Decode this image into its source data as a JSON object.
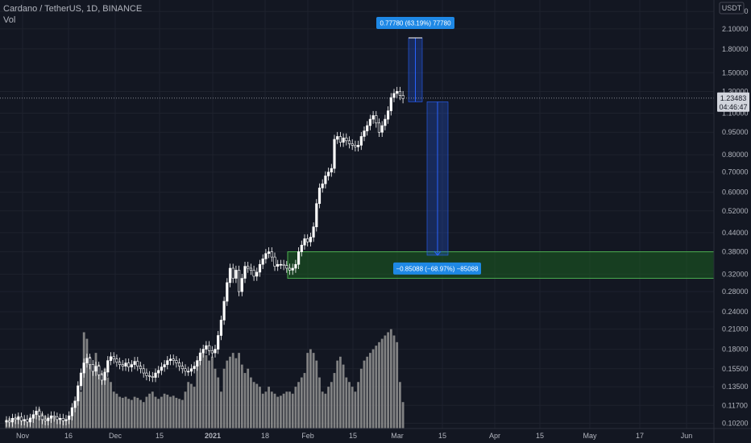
{
  "chart_data": {
    "type": "candlestick",
    "symbol_line": "Cardano / TetherUS, 1D, BINANCE",
    "volume_label": "Vol",
    "currency_badge": "USDT",
    "yscale": "log",
    "ylim": [
      0.098,
      2.62
    ],
    "y_ticks": [
      "2.40000",
      "2.10000",
      "1.80000",
      "1.50000",
      "1.30000",
      "1.10000",
      "0.95000",
      "0.80000",
      "0.70000",
      "0.60000",
      "0.52000",
      "0.44000",
      "0.38000",
      "0.32000",
      "0.28000",
      "0.24000",
      "0.21000",
      "0.18000",
      "0.15500",
      "0.13500",
      "0.11700",
      "0.10200"
    ],
    "x_ticks": [
      {
        "label": "Nov",
        "bold": false
      },
      {
        "label": "16",
        "bold": false
      },
      {
        "label": "Dec",
        "bold": false
      },
      {
        "label": "15",
        "bold": false
      },
      {
        "label": "2021",
        "bold": true
      },
      {
        "label": "18",
        "bold": false
      },
      {
        "label": "Feb",
        "bold": false
      },
      {
        "label": "15",
        "bold": false
      },
      {
        "label": "Mar",
        "bold": false
      },
      {
        "label": "15",
        "bold": false
      },
      {
        "label": "Apr",
        "bold": false
      },
      {
        "label": "15",
        "bold": false
      },
      {
        "label": "May",
        "bold": false
      },
      {
        "label": "17",
        "bold": false
      },
      {
        "label": "Jun",
        "bold": false
      }
    ],
    "current_price": {
      "value": "1.23483",
      "countdown": "04:46:47",
      "y": 1.23483
    },
    "closes": [
      0.104,
      0.103,
      0.106,
      0.105,
      0.107,
      0.104,
      0.105,
      0.103,
      0.106,
      0.109,
      0.112,
      0.108,
      0.105,
      0.104,
      0.106,
      0.108,
      0.107,
      0.105,
      0.106,
      0.104,
      0.105,
      0.108,
      0.115,
      0.121,
      0.136,
      0.15,
      0.162,
      0.168,
      0.16,
      0.152,
      0.158,
      0.148,
      0.142,
      0.151,
      0.165,
      0.17,
      0.167,
      0.163,
      0.16,
      0.158,
      0.162,
      0.157,
      0.16,
      0.164,
      0.158,
      0.155,
      0.15,
      0.147,
      0.146,
      0.145,
      0.15,
      0.153,
      0.157,
      0.16,
      0.165,
      0.167,
      0.165,
      0.162,
      0.158,
      0.155,
      0.152,
      0.152,
      0.155,
      0.158,
      0.165,
      0.175,
      0.18,
      0.185,
      0.178,
      0.175,
      0.18,
      0.2,
      0.225,
      0.26,
      0.3,
      0.335,
      0.31,
      0.33,
      0.28,
      0.31,
      0.34,
      0.335,
      0.33,
      0.315,
      0.325,
      0.345,
      0.36,
      0.375,
      0.38,
      0.365,
      0.34,
      0.345,
      0.345,
      0.342,
      0.335,
      0.33,
      0.335,
      0.345,
      0.38,
      0.4,
      0.42,
      0.41,
      0.425,
      0.46,
      0.55,
      0.62,
      0.64,
      0.68,
      0.7,
      0.72,
      0.9,
      0.92,
      0.88,
      0.91,
      0.89,
      0.87,
      0.86,
      0.85,
      0.86,
      0.92,
      0.96,
      1.0,
      1.05,
      1.08,
      1.02,
      0.95,
      1.0,
      1.05,
      1.12,
      1.24,
      1.28,
      1.3,
      1.26,
      1.23
    ],
    "volumes": [
      0.105,
      0.106,
      0.104,
      0.107,
      0.108,
      0.106,
      0.105,
      0.104,
      0.107,
      0.109,
      0.112,
      0.114,
      0.11,
      0.108,
      0.107,
      0.106,
      0.107,
      0.106,
      0.105,
      0.104,
      0.105,
      0.107,
      0.113,
      0.118,
      0.125,
      0.13,
      0.205,
      0.195,
      0.17,
      0.16,
      0.175,
      0.16,
      0.15,
      0.155,
      0.145,
      0.14,
      0.13,
      0.128,
      0.125,
      0.124,
      0.125,
      0.123,
      0.122,
      0.125,
      0.124,
      0.122,
      0.12,
      0.125,
      0.128,
      0.13,
      0.125,
      0.123,
      0.125,
      0.128,
      0.127,
      0.125,
      0.126,
      0.124,
      0.123,
      0.122,
      0.13,
      0.14,
      0.138,
      0.135,
      0.16,
      0.17,
      0.175,
      0.172,
      0.165,
      0.17,
      0.155,
      0.145,
      0.13,
      0.155,
      0.165,
      0.17,
      0.175,
      0.168,
      0.175,
      0.16,
      0.15,
      0.155,
      0.145,
      0.14,
      0.138,
      0.135,
      0.128,
      0.13,
      0.135,
      0.13,
      0.128,
      0.125,
      0.126,
      0.128,
      0.13,
      0.13,
      0.128,
      0.135,
      0.14,
      0.145,
      0.15,
      0.175,
      0.18,
      0.175,
      0.165,
      0.145,
      0.13,
      0.128,
      0.135,
      0.14,
      0.15,
      0.165,
      0.17,
      0.16,
      0.145,
      0.14,
      0.135,
      0.13,
      0.14,
      0.155,
      0.165,
      0.17,
      0.175,
      0.18,
      0.185,
      0.19,
      0.195,
      0.2,
      0.205,
      0.21,
      0.2,
      0.19,
      0.14,
      0.12
    ],
    "projection_up": {
      "label": "0.77780 (63.19%) 77780",
      "from": 1.2,
      "to": 1.96
    },
    "projection_down": {
      "label": "−0.85088 (−68.97%) −85088",
      "from": 1.2,
      "to": 0.37
    },
    "zone": {
      "top": 0.38,
      "bottom": 0.31
    },
    "colors": {
      "background": "#131722",
      "candle_up": "#ffffff",
      "candle_down": "#ffffff",
      "volume": "#8e8e8e",
      "projection": "#2962ff",
      "label_bg": "#1e88e5",
      "zone_fill": "#1b5e20",
      "zone_stroke": "#4caf50",
      "price_badge": "#d1d4dc"
    }
  }
}
